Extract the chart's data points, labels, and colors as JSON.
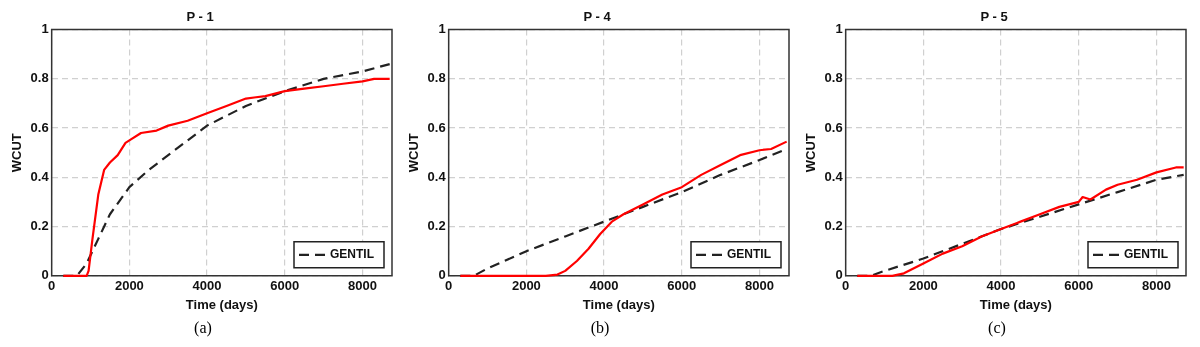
{
  "chart_data": [
    {
      "type": "line",
      "title": "P - 1",
      "xlabel": "Time (days)",
      "ylabel": "WCUT",
      "xlim": [
        0,
        8760
      ],
      "ylim": [
        0,
        1
      ],
      "xticks": [
        0,
        2000,
        4000,
        6000,
        8000
      ],
      "yticks": [
        0,
        0.2,
        0.4,
        0.6,
        0.8,
        1
      ],
      "grid": true,
      "legend": "bottom right",
      "annotations": [
        "(a)"
      ],
      "series": [
        {
          "color": "#ff0000",
          "line_style": "solid",
          "x": [
            300,
            900,
            950,
            1050,
            1200,
            1350,
            1500,
            1700,
            1900,
            2000,
            2300,
            2700,
            3000,
            3500,
            4000,
            4500,
            5000,
            5500,
            6000,
            6500,
            7000,
            7500,
            8000,
            8300,
            8700
          ],
          "values": [
            0,
            0,
            0.02,
            0.15,
            0.33,
            0.43,
            0.46,
            0.49,
            0.54,
            0.55,
            0.58,
            0.59,
            0.61,
            0.63,
            0.66,
            0.69,
            0.72,
            0.73,
            0.75,
            0.76,
            0.77,
            0.78,
            0.79,
            0.8,
            0.8
          ]
        },
        {
          "name": "GENTIL",
          "color": "#222222",
          "line_style": "dashed",
          "x": [
            300,
            650,
            900,
            1200,
            1500,
            2000,
            2500,
            3000,
            3500,
            4000,
            4500,
            5000,
            5500,
            6000,
            7000,
            8000,
            8700
          ],
          "values": [
            0,
            0,
            0.05,
            0.15,
            0.25,
            0.36,
            0.43,
            0.49,
            0.55,
            0.61,
            0.65,
            0.69,
            0.72,
            0.75,
            0.8,
            0.83,
            0.86
          ]
        }
      ]
    },
    {
      "type": "line",
      "title": "P - 4",
      "xlabel": "Time (days)",
      "ylabel": "WCUT",
      "xlim": [
        0,
        8760
      ],
      "ylim": [
        0,
        1
      ],
      "xticks": [
        0,
        2000,
        4000,
        6000,
        8000
      ],
      "yticks": [
        0,
        0.2,
        0.4,
        0.6,
        0.8,
        1
      ],
      "grid": true,
      "legend": "bottom right",
      "annotations": [
        "(b)"
      ],
      "series": [
        {
          "color": "#ff0000",
          "line_style": "solid",
          "x": [
            300,
            2500,
            2800,
            3000,
            3300,
            3600,
            3900,
            4200,
            4500,
            5000,
            5500,
            6000,
            6500,
            7000,
            7500,
            8000,
            8300,
            8700
          ],
          "values": [
            0,
            0,
            0.005,
            0.02,
            0.06,
            0.11,
            0.17,
            0.22,
            0.25,
            0.29,
            0.33,
            0.36,
            0.41,
            0.45,
            0.49,
            0.51,
            0.515,
            0.545
          ]
        },
        {
          "name": "GENTIL",
          "color": "#222222",
          "line_style": "dashed",
          "x": [
            300,
            650,
            1000,
            2000,
            3000,
            4000,
            5000,
            6000,
            7000,
            8000,
            8700
          ],
          "values": [
            0,
            0,
            0.03,
            0.1,
            0.16,
            0.22,
            0.28,
            0.34,
            0.41,
            0.47,
            0.515
          ]
        }
      ]
    },
    {
      "type": "line",
      "title": "P - 5",
      "xlabel": "Time (days)",
      "ylabel": "WCUT",
      "xlim": [
        0,
        8760
      ],
      "ylim": [
        0,
        1
      ],
      "xticks": [
        0,
        2000,
        4000,
        6000,
        8000
      ],
      "yticks": [
        0,
        0.2,
        0.4,
        0.6,
        0.8,
        1
      ],
      "grid": true,
      "legend": "bottom right",
      "annotations": [
        "(c)"
      ],
      "series": [
        {
          "color": "#ff0000",
          "line_style": "solid",
          "x": [
            300,
            1200,
            1500,
            2000,
            2500,
            3000,
            3500,
            4000,
            4500,
            5000,
            5500,
            6000,
            6100,
            6300,
            6700,
            7000,
            7500,
            8000,
            8500,
            8700
          ],
          "values": [
            0,
            0,
            0.01,
            0.05,
            0.09,
            0.12,
            0.16,
            0.19,
            0.22,
            0.25,
            0.28,
            0.3,
            0.32,
            0.31,
            0.35,
            0.37,
            0.39,
            0.42,
            0.44,
            0.44
          ]
        },
        {
          "name": "GENTIL",
          "color": "#222222",
          "line_style": "dashed",
          "x": [
            300,
            650,
            1000,
            2000,
            3000,
            4000,
            5000,
            6000,
            7000,
            8000,
            8700
          ],
          "values": [
            0,
            0,
            0.02,
            0.07,
            0.13,
            0.19,
            0.24,
            0.29,
            0.34,
            0.39,
            0.41
          ]
        }
      ]
    }
  ]
}
